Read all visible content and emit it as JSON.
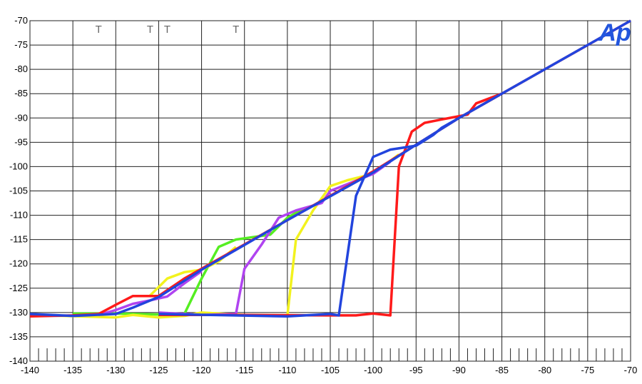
{
  "chart_data": {
    "type": "line",
    "logo": "Ap",
    "annotations": [
      {
        "text": "T",
        "x": -132
      },
      {
        "text": "T",
        "x": -126
      },
      {
        "text": "T",
        "x": -124
      },
      {
        "text": "T",
        "x": -116
      }
    ],
    "xlim": [
      -140,
      -70
    ],
    "xticks": [
      -140,
      -135,
      -130,
      -125,
      -120,
      -115,
      -110,
      -105,
      -100,
      -95,
      -90,
      -85,
      -80,
      -75,
      -70
    ],
    "ylim": [
      -140,
      -70
    ],
    "yticks": [
      -140,
      -135,
      -130,
      -125,
      -120,
      -115,
      -110,
      -105,
      -100,
      -95,
      -90,
      -85,
      -80,
      -75,
      -70
    ],
    "grid": true,
    "minor_xtick_step": 1,
    "series": [
      {
        "color": "#55ee22",
        "x": [
          -135,
          -130,
          -125,
          -122,
          -120,
          -118,
          -116,
          -114,
          -112,
          -110,
          -108
        ],
        "values": [
          -130.2,
          -130.2,
          -130.4,
          -130.3,
          -123,
          -116.5,
          -115,
          -114.5,
          -114,
          -110.5,
          -108.5
        ]
      },
      {
        "color": "#f2f21e",
        "x": [
          -140,
          -130,
          -128,
          -125,
          -122,
          -120,
          -115,
          -110,
          -109,
          -107,
          -105,
          -103,
          -100,
          -97,
          null,
          -126,
          -124,
          -122,
          -120,
          -118,
          -116
        ],
        "values": [
          -130.5,
          -131,
          -130.5,
          -131,
          -130.7,
          -130,
          -130.5,
          -130.6,
          -115,
          -109,
          -104,
          -102.8,
          -101.5,
          -97.5,
          null,
          -126.5,
          -123,
          -121.7,
          -121.2,
          -119.5,
          -116.5
        ]
      },
      {
        "color": "#b044f0",
        "x": [
          -132,
          -130,
          -128,
          -126,
          -124,
          -122,
          -120,
          null,
          -125,
          -120,
          -116,
          -115,
          -113,
          -111,
          -109,
          -106,
          -105,
          -100,
          -98
        ],
        "values": [
          -130.5,
          -129.5,
          -128.2,
          -127.5,
          -126.7,
          -124,
          -121.5,
          null,
          -130,
          -130.5,
          -130.3,
          -121,
          -116,
          -110.5,
          -109,
          -107.5,
          -105,
          -101.5,
          -99
        ]
      },
      {
        "color": "#ff1a1a",
        "x": [
          -140,
          -135,
          -132,
          -130,
          -128,
          -125,
          -122,
          -118,
          -110,
          -100,
          -95,
          -90,
          -85,
          -80,
          -75,
          -70,
          null,
          -125,
          -115,
          -105,
          -102,
          -100,
          -98,
          -97,
          -95.5,
          -94,
          -92,
          -89,
          -88,
          -85
        ],
        "values": [
          -130.8,
          -130.6,
          -130.3,
          -128.4,
          -126.6,
          -126.6,
          -123,
          -119,
          -111,
          -101,
          -95.5,
          -90,
          -85,
          -80,
          -75,
          -70,
          null,
          -130.5,
          -130.5,
          -130.6,
          -130.6,
          -130.2,
          -130.6,
          -100,
          -92.8,
          -91,
          -90.3,
          -89.3,
          -87,
          -85
        ]
      },
      {
        "color": "#2244dd",
        "x": [
          -140,
          -135,
          -130,
          -128,
          -125,
          -120,
          -110,
          -100,
          -95,
          -90,
          -80,
          -70,
          null,
          -125,
          -110,
          -105,
          -104,
          -102,
          -100,
          -98,
          -95,
          -93,
          -92,
          -88
        ],
        "values": [
          -130.3,
          -130.7,
          -130.3,
          -129,
          -126.8,
          -121.2,
          -111,
          -101.2,
          -95.5,
          -90,
          -80,
          -70,
          null,
          -130.3,
          -130.8,
          -130.3,
          -130.6,
          -106,
          -98,
          -96.5,
          -95.7,
          -93.5,
          -92,
          -88
        ]
      }
    ]
  }
}
